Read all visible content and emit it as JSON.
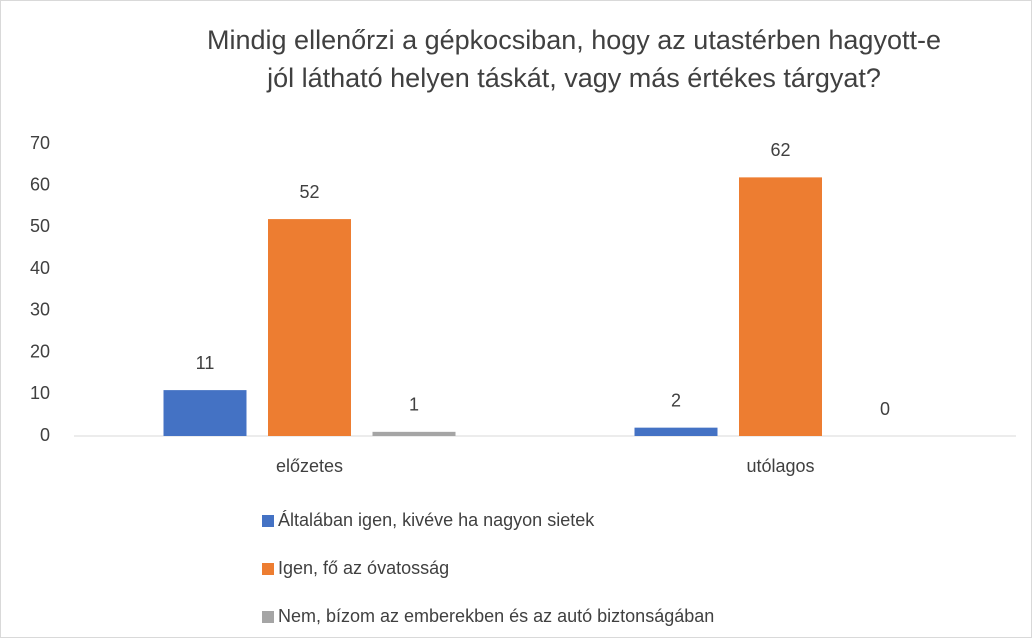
{
  "chart_data": {
    "type": "bar",
    "title": [
      "Mindig ellenőrzi a gépkocsiban, hogy az utastérben hagyott-e",
      "jól látható helyen táskát, vagy más értékes tárgyat?"
    ],
    "categories": [
      "előzetes",
      "utólagos"
    ],
    "series": [
      {
        "name": "Általában igen, kivéve ha nagyon sietek",
        "color": "#4472c4",
        "values": [
          11,
          2
        ]
      },
      {
        "name": "Igen, fő az óvatosság",
        "color": "#ed7d31",
        "values": [
          52,
          62
        ]
      },
      {
        "name": "Nem, bízom az emberekben és az autó biztonságában",
        "color": "#a5a5a5",
        "values": [
          1,
          0
        ]
      }
    ],
    "ylim": [
      0,
      70
    ],
    "yticks": [
      0,
      10,
      20,
      30,
      40,
      50,
      60,
      70
    ],
    "grid": false,
    "legend": "bottom"
  }
}
